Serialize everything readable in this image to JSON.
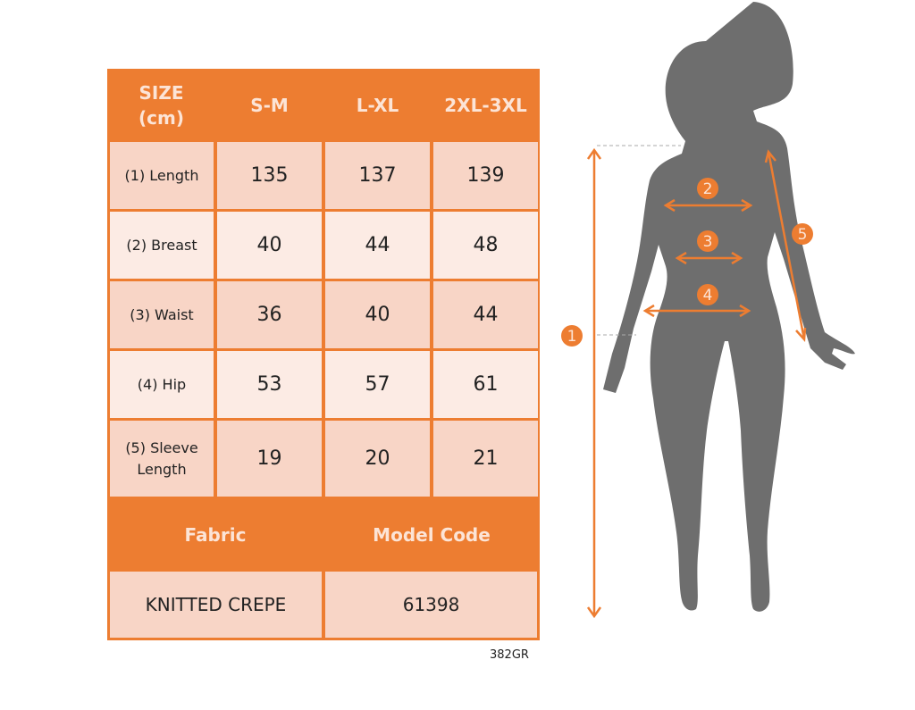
{
  "table": {
    "header": [
      "SIZE\n(cm)",
      "S-M",
      "L-XL",
      "2XL-3XL"
    ],
    "rows": [
      {
        "label": "(1) Length",
        "values": [
          "135",
          "137",
          "139"
        ]
      },
      {
        "label": "(2) Breast",
        "values": [
          "40",
          "44",
          "48"
        ]
      },
      {
        "label": "(3) Waist",
        "values": [
          "36",
          "40",
          "44"
        ]
      },
      {
        "label": "(4) Hip",
        "values": [
          "53",
          "57",
          "61"
        ]
      },
      {
        "label": "(5) Sleeve\nLength",
        "values": [
          "19",
          "20",
          "21"
        ]
      }
    ],
    "fabric_header": "Fabric",
    "model_code_header": "Model Code",
    "fabric_value": "KNITTED CREPE",
    "model_code_value": "61398"
  },
  "product_code": "382GR",
  "figure": {
    "markers": [
      "1",
      "2",
      "3",
      "4",
      "5"
    ]
  },
  "colors": {
    "accent": "#ED7D31",
    "silhouette": "#6E6E6E",
    "cell_dark": "#F8D5C6",
    "cell_light": "#FCEBE4"
  }
}
